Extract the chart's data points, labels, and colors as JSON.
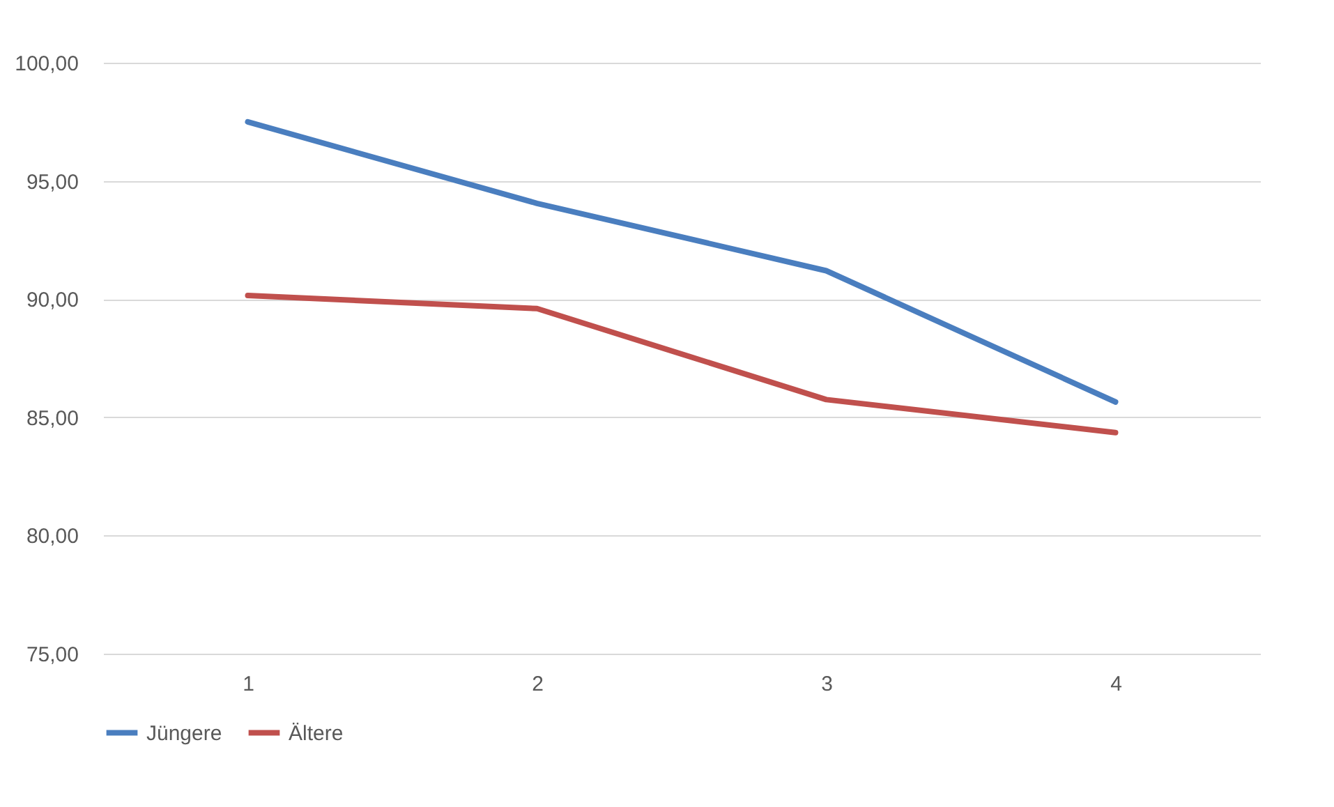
{
  "chart_data": {
    "type": "line",
    "categories": [
      "1",
      "2",
      "3",
      "4"
    ],
    "series": [
      {
        "name": "Jüngere",
        "color": "#4a7ebf",
        "values": [
          97.5,
          94.05,
          91.2,
          85.65
        ]
      },
      {
        "name": "Ältere",
        "color": "#c0504d",
        "values": [
          90.15,
          89.6,
          85.75,
          84.35
        ]
      }
    ],
    "ylim": [
      75,
      100
    ],
    "yticks": [
      {
        "value": 75,
        "label": "75,00"
      },
      {
        "value": 80,
        "label": "80,00"
      },
      {
        "value": 85,
        "label": "85,00"
      },
      {
        "value": 90,
        "label": "90,00"
      },
      {
        "value": 95,
        "label": "95,00"
      },
      {
        "value": 100,
        "label": "100,00"
      }
    ],
    "grid": "y",
    "legend": "bottom",
    "marker": "none",
    "line_style": "solid"
  }
}
